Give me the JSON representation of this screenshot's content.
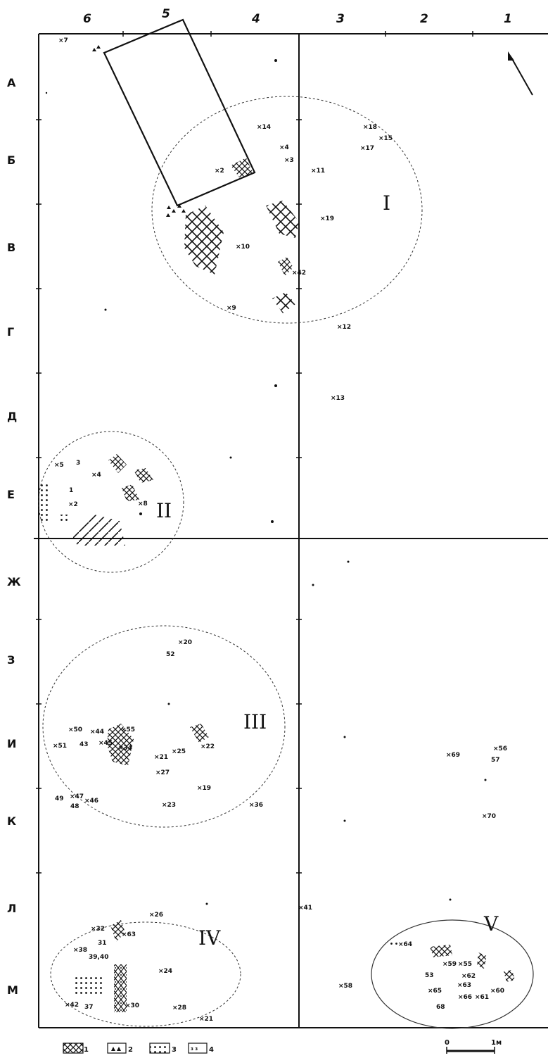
{
  "columns": [
    "6",
    "5",
    "4",
    "3",
    "2",
    "1"
  ],
  "rows": [
    "А",
    "Б",
    "В",
    "Г",
    "Д",
    "Е",
    "Ж",
    "З",
    "И",
    "К",
    "Л",
    "М"
  ],
  "clusters": [
    "I",
    "II",
    "III",
    "IV",
    "V"
  ],
  "finds": [
    "×7",
    "×14",
    "×18",
    "×15",
    "×17",
    "×4",
    "×3",
    "×2",
    "×11",
    "×19",
    "×10",
    "×42",
    "×9",
    "×12",
    "×13",
    "×5",
    "3",
    "×4",
    "1",
    "×2",
    "×8",
    "×20",
    "52",
    "×50",
    "×44",
    "×55",
    "×51",
    "43",
    "×45",
    "×34",
    "×22",
    "×21",
    "×25",
    "×27",
    "×19",
    "49",
    "×47",
    "48",
    "×46",
    "×23",
    "×36",
    "×69",
    "×56",
    "57",
    "×70",
    "×26",
    "×32",
    "31",
    "×63",
    "×38",
    "39,40",
    "×24",
    "×42",
    "37",
    "×30",
    "×28",
    "×21",
    "×64",
    "×59",
    "53",
    "×55",
    "×62",
    "×63",
    "×65",
    "×66",
    "×61",
    "×60",
    "68",
    "×58",
    "×41"
  ],
  "legend": [
    "1",
    "2",
    "3",
    "4"
  ],
  "scale": {
    "zero": "0",
    "unit": "1м"
  }
}
